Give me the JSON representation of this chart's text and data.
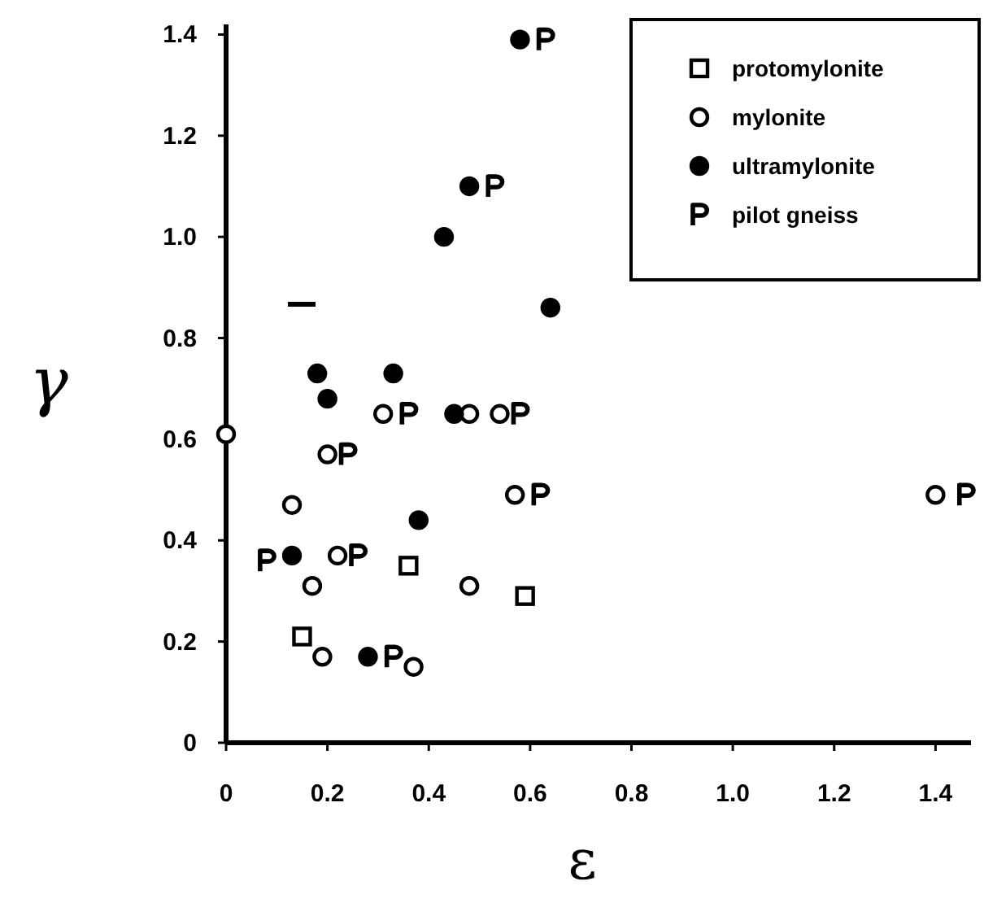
{
  "chart_data": {
    "type": "scatter",
    "xlabel": "ε",
    "ylabel": "γ",
    "xlim": [
      0,
      1.47
    ],
    "ylim": [
      0,
      1.42
    ],
    "xticks": [
      0,
      0.2,
      0.4,
      0.6,
      0.8,
      {
        "value": 1,
        "label": "1.0"
      },
      1.2,
      1.4
    ],
    "yticks": [
      0,
      0.2,
      0.4,
      0.6,
      0.8,
      {
        "value": 1,
        "label": "1.0"
      },
      1.2,
      1.4
    ],
    "grid": false,
    "legend": "top right",
    "series": [
      {
        "name": "protomylonite",
        "color": "#000000",
        "marker": "square",
        "x": [
          0.36,
          0.59,
          0.15
        ],
        "values": [
          0.35,
          0.29,
          0.21
        ]
      },
      {
        "name": "mylonite",
        "color": "#000000",
        "marker": "circle",
        "x": [
          0.31,
          0.48,
          0.54,
          0.2,
          0.13,
          0.57,
          0.22,
          0.17,
          0.48,
          0.19,
          0.37,
          0,
          1.4
        ],
        "values": [
          0.65,
          0.65,
          0.65,
          0.57,
          0.47,
          0.49,
          0.37,
          0.31,
          0.31,
          0.17,
          0.15,
          0.61,
          0.49
        ]
      },
      {
        "name": "ultramylonite",
        "color": "#000000",
        "marker": "circle",
        "x": [
          0.58,
          0.48,
          0.43,
          0.64,
          0.18,
          0.33,
          0.2,
          0.45,
          0.38,
          0.13,
          0.28
        ],
        "values": [
          1.39,
          1.1,
          1.0,
          0.86,
          0.73,
          0.73,
          0.68,
          0.65,
          0.44,
          0.37,
          0.17
        ]
      },
      {
        "name": "pilot gneiss",
        "color": "#000000",
        "x": [
          0.63,
          0.53,
          0.36,
          0.58,
          0.24,
          0.62,
          1.46,
          0.26,
          0.08,
          0.33
        ],
        "values": [
          1.39,
          1.1,
          0.65,
          0.65,
          0.57,
          0.49,
          0.49,
          0.37,
          0.36,
          0.17
        ]
      }
    ]
  }
}
